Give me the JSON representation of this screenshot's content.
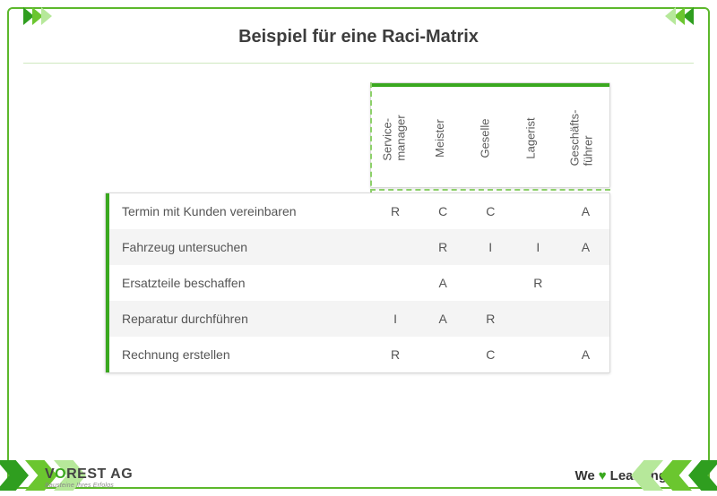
{
  "title": "Beispiel für eine Raci-Matrix",
  "brand": {
    "v": "V",
    "o": "O",
    "rest": "REST AG",
    "tagline": "Bausteine Ihres Erfolgs"
  },
  "footer": {
    "we": "We",
    "love_rest": "Learning"
  },
  "matrix": {
    "type": "table",
    "colors": {
      "accent": "#3aa81f",
      "dash": "#8dd06a",
      "row_alt": "#f4f4f4",
      "text": "#555555",
      "border": "#d8d8d8"
    },
    "columns": [
      "Service-\nmanager",
      "Meister",
      "Geselle",
      "Lagerist",
      "Geschäfts-\nführer"
    ],
    "rows": [
      {
        "task": "Termin mit Kunden vereinbaren",
        "cells": [
          "R",
          "C",
          "C",
          "",
          "A"
        ]
      },
      {
        "task": "Fahrzeug untersuchen",
        "cells": [
          "",
          "R",
          "I",
          "I",
          "A"
        ]
      },
      {
        "task": "Ersatzteile beschaffen",
        "cells": [
          "",
          "A",
          "",
          "R",
          ""
        ]
      },
      {
        "task": "Reparatur durchführen",
        "cells": [
          "I",
          "A",
          "R",
          "",
          ""
        ]
      },
      {
        "task": "Rechnung erstellen",
        "cells": [
          "R",
          "",
          "C",
          "",
          "A"
        ]
      }
    ]
  }
}
